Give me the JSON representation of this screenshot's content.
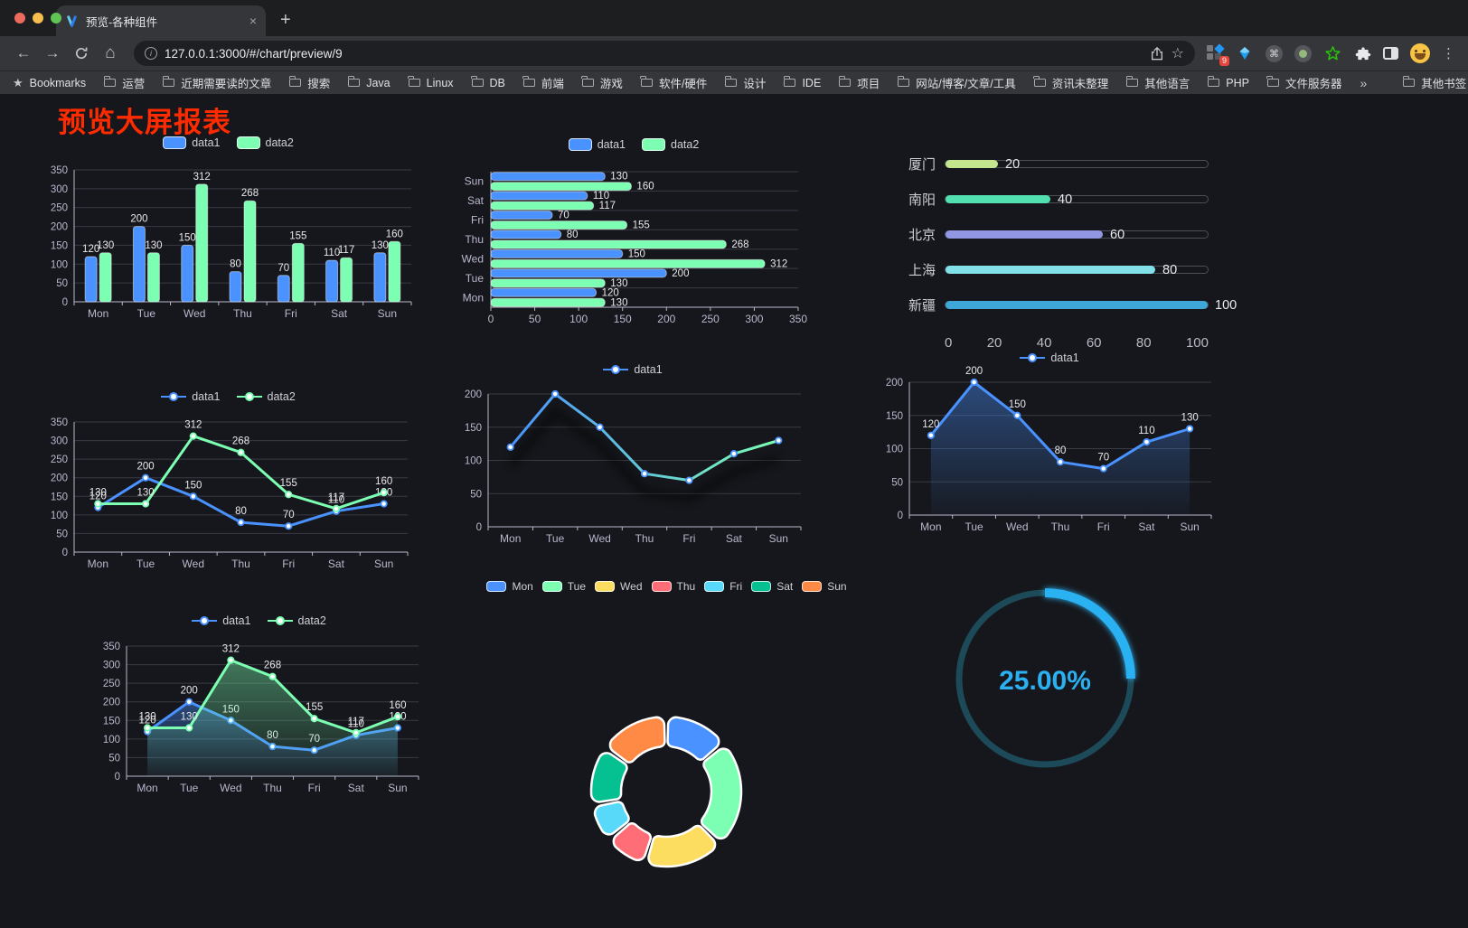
{
  "browser": {
    "tab_title": "预览-各种组件",
    "close_glyph": "×",
    "newtab_glyph": "+",
    "back_glyph": "←",
    "forward_glyph": "→",
    "home_glyph": "⌂",
    "info_glyph": "i",
    "url": "127.0.0.1:3000/#/chart/preview/9",
    "star_glyph": "☆",
    "cmd_glyph": "⌘",
    "kebab_glyph": "⋮",
    "extension_badge": "9",
    "bookmarks_label": "Bookmarks",
    "bookmark_folders": [
      "运营",
      "近期需要读的文章",
      "搜索",
      "Java",
      "Linux",
      "DB",
      "前端",
      "游戏",
      "软件/硬件",
      "设计",
      "IDE",
      "项目",
      "网站/博客/文章/工具",
      "资讯未整理",
      "其他语言",
      "PHP",
      "文件服务器"
    ],
    "overflow_chevron": "»",
    "other_bookmarks": "其他书签"
  },
  "page": {
    "heading": "预览大屏报表",
    "heading_color": "#fe2b00",
    "background": "#16171c"
  },
  "theme": {
    "axis_color": "#b9b8ce",
    "grid_color": "#383a44",
    "label_color": "#e8e8ea",
    "series_blue": "#4992ff",
    "series_green": "#7cffb2"
  },
  "chart_data": [
    {
      "id": "bar1",
      "type": "bar",
      "legend_type": "chip",
      "labels": true,
      "categories": [
        "Mon",
        "Tue",
        "Wed",
        "Thu",
        "Fri",
        "Sat",
        "Sun"
      ],
      "series": [
        {
          "name": "data1",
          "color": "#4992ff",
          "values": [
            120,
            200,
            150,
            80,
            70,
            110,
            130
          ]
        },
        {
          "name": "data2",
          "color": "#7cffb2",
          "values": [
            130,
            130,
            312,
            268,
            155,
            117,
            160
          ]
        }
      ],
      "ylim": [
        0,
        350
      ],
      "ystep": 50
    },
    {
      "id": "hbar1",
      "type": "hbar",
      "legend_type": "chip",
      "labels": true,
      "categories": [
        "Mon",
        "Tue",
        "Wed",
        "Thu",
        "Fri",
        "Sat",
        "Sun"
      ],
      "series": [
        {
          "name": "data1",
          "color": "#4992ff",
          "values": [
            120,
            200,
            150,
            80,
            70,
            110,
            130
          ]
        },
        {
          "name": "data2",
          "color": "#7cffb2",
          "values": [
            130,
            130,
            312,
            268,
            155,
            117,
            160
          ]
        }
      ],
      "xlim": [
        0,
        350
      ],
      "xstep": 50
    },
    {
      "id": "progress1",
      "type": "progress",
      "max": 100,
      "axis_ticks": [
        0,
        20,
        40,
        60,
        80,
        100
      ],
      "rows": [
        {
          "label": "厦门",
          "value": 20,
          "color": "#c3e58d"
        },
        {
          "label": "南阳",
          "value": 40,
          "color": "#52e0b0"
        },
        {
          "label": "北京",
          "value": 60,
          "color": "#9297e3"
        },
        {
          "label": "上海",
          "value": 80,
          "color": "#82e0e8"
        },
        {
          "label": "新疆",
          "value": 100,
          "color": "#3ea7d8"
        }
      ]
    },
    {
      "id": "line1",
      "type": "line",
      "legend_type": "line",
      "labels": true,
      "categories": [
        "Mon",
        "Tue",
        "Wed",
        "Thu",
        "Fri",
        "Sat",
        "Sun"
      ],
      "series": [
        {
          "name": "data1",
          "color": "#4992ff",
          "values": [
            120,
            200,
            150,
            80,
            70,
            110,
            130
          ]
        },
        {
          "name": "data2",
          "color": "#7cffb2",
          "values": [
            130,
            130,
            312,
            268,
            155,
            117,
            160
          ]
        }
      ],
      "ylim": [
        0,
        350
      ],
      "ystep": 50
    },
    {
      "id": "line2",
      "type": "line",
      "legend_type": "line",
      "labels": false,
      "categories": [
        "Mon",
        "Tue",
        "Wed",
        "Thu",
        "Fri",
        "Sat",
        "Sun"
      ],
      "series": [
        {
          "name": "data1",
          "color": "#4992ff",
          "gradient": [
            "#4992ff",
            "#7cffb2"
          ],
          "shadow": true,
          "values": [
            120,
            200,
            150,
            80,
            70,
            110,
            130
          ]
        }
      ],
      "ylim": [
        0,
        200
      ],
      "ystep": 50
    },
    {
      "id": "line3",
      "type": "line",
      "legend_type": "line",
      "labels": true,
      "categories": [
        "Mon",
        "Tue",
        "Wed",
        "Thu",
        "Fri",
        "Sat",
        "Sun"
      ],
      "series": [
        {
          "name": "data1",
          "color": "#4992ff",
          "area": true,
          "values": [
            120,
            200,
            150,
            80,
            70,
            110,
            130
          ]
        }
      ],
      "ylim": [
        0,
        200
      ],
      "ystep": 50
    },
    {
      "id": "line4",
      "type": "line",
      "legend_type": "line",
      "labels": true,
      "categories": [
        "Mon",
        "Tue",
        "Wed",
        "Thu",
        "Fri",
        "Sat",
        "Sun"
      ],
      "series": [
        {
          "name": "data1",
          "color": "#4992ff",
          "area": true,
          "values": [
            120,
            200,
            150,
            80,
            70,
            110,
            130
          ]
        },
        {
          "name": "data2",
          "color": "#7cffb2",
          "area": true,
          "values": [
            130,
            130,
            312,
            268,
            155,
            117,
            160
          ]
        }
      ],
      "ylim": [
        0,
        350
      ],
      "ystep": 50
    },
    {
      "id": "pie1",
      "type": "pie",
      "categories": [
        "Mon",
        "Tue",
        "Wed",
        "Thu",
        "Fri",
        "Sat",
        "Sun"
      ],
      "values": [
        120,
        200,
        150,
        80,
        70,
        110,
        130
      ],
      "colors": [
        "#4992ff",
        "#7cffb2",
        "#fddd60",
        "#ff6e76",
        "#58d9f9",
        "#05c091",
        "#ff8a45"
      ]
    },
    {
      "id": "gauge1",
      "type": "gauge",
      "percent": 25,
      "value_label": "25.00%",
      "color": "#2bb1f2",
      "track_color": "#1d4a58"
    }
  ]
}
